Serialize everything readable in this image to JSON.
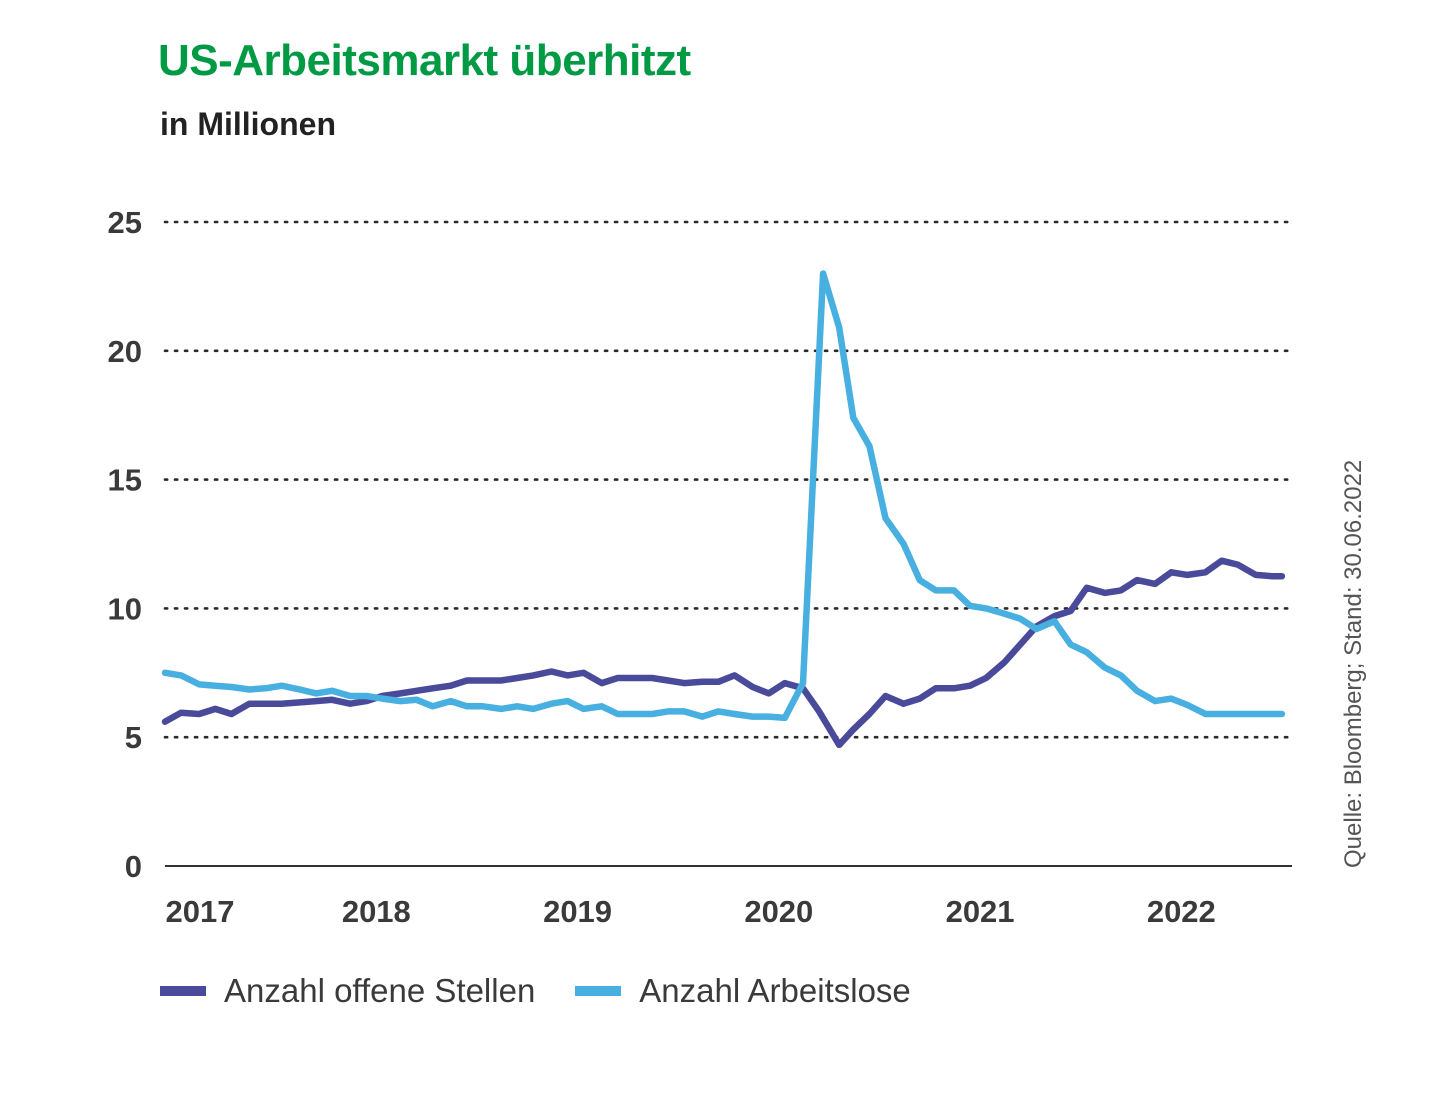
{
  "title": "US-Arbeitsmarkt überhitzt",
  "subtitle": "in Millionen",
  "source": "Quelle: Bloomberg; Stand: 30.06.2022",
  "chart_data": {
    "type": "line",
    "ylim": [
      0,
      25
    ],
    "yticks": [
      "0",
      "5",
      "10",
      "15",
      "20",
      "25"
    ],
    "xticks": [
      "2017",
      "2018",
      "2019",
      "2020",
      "2021",
      "2022"
    ],
    "xlim": [
      2016.95,
      2022.55
    ],
    "grid": "dotted horizontal",
    "legend_position": "bottom",
    "series": [
      {
        "name": "Anzahl offene Stellen",
        "color": "#4a4a9a",
        "x": [
          2016.95,
          2017.03,
          2017.12,
          2017.2,
          2017.28,
          2017.37,
          2017.45,
          2017.53,
          2017.62,
          2017.7,
          2017.78,
          2017.87,
          2017.95,
          2018.03,
          2018.12,
          2018.2,
          2018.28,
          2018.37,
          2018.45,
          2018.53,
          2018.62,
          2018.7,
          2018.78,
          2018.87,
          2018.95,
          2019.03,
          2019.12,
          2019.2,
          2019.28,
          2019.37,
          2019.45,
          2019.53,
          2019.62,
          2019.7,
          2019.78,
          2019.87,
          2019.95,
          2020.03,
          2020.12,
          2020.2,
          2020.3,
          2020.37,
          2020.45,
          2020.53,
          2020.62,
          2020.7,
          2020.78,
          2020.87,
          2020.95,
          2021.03,
          2021.12,
          2021.2,
          2021.28,
          2021.37,
          2021.45,
          2021.53,
          2021.62,
          2021.7,
          2021.78,
          2021.87,
          2021.95,
          2022.03,
          2022.12,
          2022.2,
          2022.28,
          2022.37,
          2022.45,
          2022.5
        ],
        "values": [
          5.6,
          5.95,
          5.9,
          6.1,
          5.9,
          6.3,
          6.3,
          6.3,
          6.35,
          6.4,
          6.45,
          6.3,
          6.4,
          6.6,
          6.7,
          6.8,
          6.9,
          7.0,
          7.2,
          7.2,
          7.2,
          7.3,
          7.4,
          7.55,
          7.4,
          7.5,
          7.1,
          7.3,
          7.3,
          7.3,
          7.2,
          7.1,
          7.15,
          7.15,
          7.4,
          6.95,
          6.7,
          7.1,
          6.9,
          6.0,
          4.7,
          5.3,
          5.9,
          6.6,
          6.3,
          6.5,
          6.9,
          6.9,
          7.0,
          7.3,
          7.9,
          8.6,
          9.3,
          9.7,
          9.9,
          10.8,
          10.6,
          10.7,
          11.1,
          10.95,
          11.4,
          11.3,
          11.4,
          11.85,
          11.7,
          11.3,
          11.25,
          11.25
        ]
      },
      {
        "name": "Anzahl Arbeitslose",
        "color": "#48b0e0",
        "x": [
          2016.95,
          2017.03,
          2017.12,
          2017.2,
          2017.28,
          2017.37,
          2017.45,
          2017.53,
          2017.62,
          2017.7,
          2017.78,
          2017.87,
          2017.95,
          2018.03,
          2018.12,
          2018.2,
          2018.28,
          2018.37,
          2018.45,
          2018.53,
          2018.62,
          2018.7,
          2018.78,
          2018.87,
          2018.95,
          2019.03,
          2019.12,
          2019.2,
          2019.28,
          2019.37,
          2019.45,
          2019.53,
          2019.62,
          2019.7,
          2019.78,
          2019.87,
          2019.95,
          2020.03,
          2020.12,
          2020.22,
          2020.3,
          2020.37,
          2020.45,
          2020.53,
          2020.62,
          2020.7,
          2020.78,
          2020.87,
          2020.95,
          2021.03,
          2021.12,
          2021.2,
          2021.28,
          2021.37,
          2021.45,
          2021.53,
          2021.62,
          2021.7,
          2021.78,
          2021.87,
          2021.95,
          2022.03,
          2022.12,
          2022.2,
          2022.28,
          2022.37,
          2022.45,
          2022.5
        ],
        "values": [
          7.5,
          7.4,
          7.05,
          7.0,
          6.95,
          6.85,
          6.9,
          7.0,
          6.85,
          6.7,
          6.8,
          6.6,
          6.6,
          6.5,
          6.4,
          6.45,
          6.2,
          6.4,
          6.2,
          6.2,
          6.1,
          6.2,
          6.1,
          6.3,
          6.4,
          6.1,
          6.2,
          5.9,
          5.9,
          5.9,
          6.0,
          6.0,
          5.8,
          6.0,
          5.9,
          5.8,
          5.8,
          5.75,
          7.1,
          23.0,
          20.9,
          17.4,
          16.3,
          13.5,
          12.5,
          11.1,
          10.7,
          10.7,
          10.1,
          10.0,
          9.8,
          9.6,
          9.2,
          9.5,
          8.6,
          8.3,
          7.7,
          7.4,
          6.8,
          6.4,
          6.5,
          6.25,
          5.9,
          5.9,
          5.9,
          5.9,
          5.9,
          5.9
        ]
      }
    ]
  }
}
